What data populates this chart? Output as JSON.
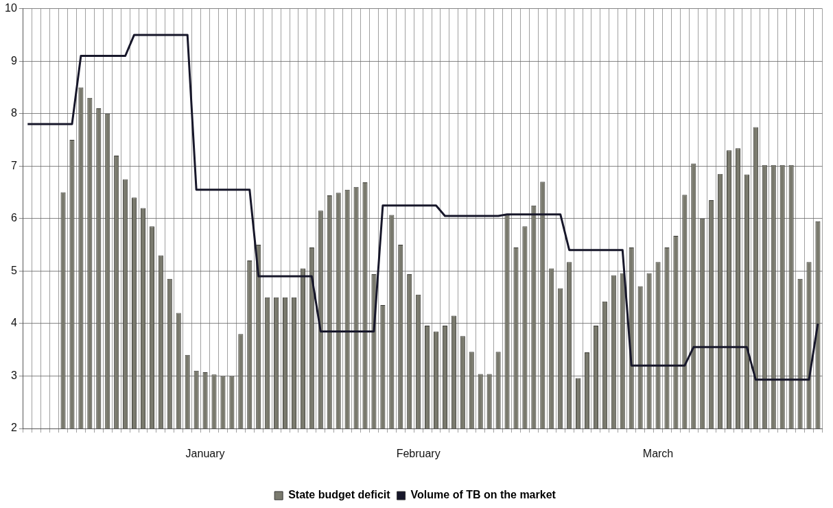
{
  "chart_data": {
    "type": "bar",
    "categories": [
      null,
      null,
      null,
      null,
      null,
      null,
      null,
      null,
      null,
      null,
      null,
      null,
      null,
      null,
      null,
      null,
      null,
      null,
      null,
      null,
      "January",
      null,
      null,
      null,
      null,
      null,
      null,
      null,
      null,
      null,
      null,
      null,
      null,
      null,
      null,
      null,
      null,
      null,
      null,
      null,
      null,
      null,
      null,
      null,
      "February",
      null,
      null,
      null,
      null,
      null,
      null,
      null,
      null,
      null,
      null,
      null,
      null,
      null,
      null,
      null,
      null,
      null,
      null,
      null,
      null,
      null,
      null,
      null,
      null,
      null,
      null,
      "March",
      null,
      null,
      null,
      null,
      null,
      null,
      null,
      null,
      null,
      null,
      null,
      null,
      null,
      null,
      null,
      null,
      null,
      null
    ],
    "series": [
      {
        "name": "State budget deficit",
        "color": "#7a7a6e",
        "values": [
          null,
          null,
          null,
          null,
          6.5,
          7.5,
          8.5,
          8.3,
          8.1,
          8.0,
          7.2,
          6.75,
          6.4,
          6.2,
          5.85,
          5.3,
          4.85,
          4.2,
          3.4,
          3.1,
          3.07,
          3.03,
          3.0,
          3.0,
          3.8,
          5.2,
          5.5,
          4.5,
          4.5,
          4.5,
          4.5,
          5.05,
          5.45,
          6.15,
          6.44,
          6.49,
          6.55,
          6.6,
          6.69,
          4.94,
          4.35,
          6.07,
          5.5,
          4.94,
          4.55,
          3.96,
          3.85,
          3.96,
          4.15,
          3.76,
          3.46,
          3.04,
          3.04,
          3.46,
          6.07,
          5.45,
          5.85,
          6.25,
          6.7,
          5.05,
          4.67,
          5.17,
          2.96,
          3.45,
          3.96,
          4.42,
          4.92,
          4.96,
          5.45,
          4.71,
          4.96,
          5.17,
          5.45,
          5.67,
          6.45,
          7.05,
          6.0,
          6.35,
          6.85,
          7.3,
          7.34,
          6.84,
          7.74,
          7.02,
          7.02,
          7.02,
          7.02,
          4.85,
          5.17,
          5.95
        ]
      },
      {
        "name": "Volume of TB on the market",
        "type": "line",
        "color": "#17172a",
        "values": [
          7.8,
          7.8,
          7.8,
          7.8,
          7.8,
          7.8,
          9.1,
          9.1,
          9.1,
          9.1,
          9.1,
          9.1,
          9.5,
          9.5,
          9.5,
          9.5,
          9.5,
          9.5,
          9.5,
          6.55,
          6.55,
          6.55,
          6.55,
          6.55,
          6.55,
          6.55,
          4.9,
          4.9,
          4.9,
          4.9,
          4.9,
          4.9,
          4.9,
          3.85,
          3.85,
          3.85,
          3.85,
          3.85,
          3.85,
          3.85,
          6.25,
          6.25,
          6.25,
          6.25,
          6.25,
          6.25,
          6.25,
          6.05,
          6.05,
          6.05,
          6.05,
          6.05,
          6.05,
          6.05,
          6.08,
          6.08,
          6.08,
          6.08,
          6.08,
          6.08,
          6.08,
          5.4,
          5.4,
          5.4,
          5.4,
          5.4,
          5.4,
          5.4,
          3.2,
          3.2,
          3.2,
          3.2,
          3.2,
          3.2,
          3.2,
          3.55,
          3.55,
          3.55,
          3.55,
          3.55,
          3.55,
          3.55,
          2.93,
          2.93,
          2.93,
          2.93,
          2.93,
          2.93,
          2.93,
          4.0
        ]
      }
    ],
    "ylim": [
      2,
      10
    ],
    "yticks": [
      2,
      3,
      4,
      5,
      6,
      7,
      8,
      9,
      10
    ],
    "grid": true,
    "legend": "bottom",
    "marker": "none"
  }
}
